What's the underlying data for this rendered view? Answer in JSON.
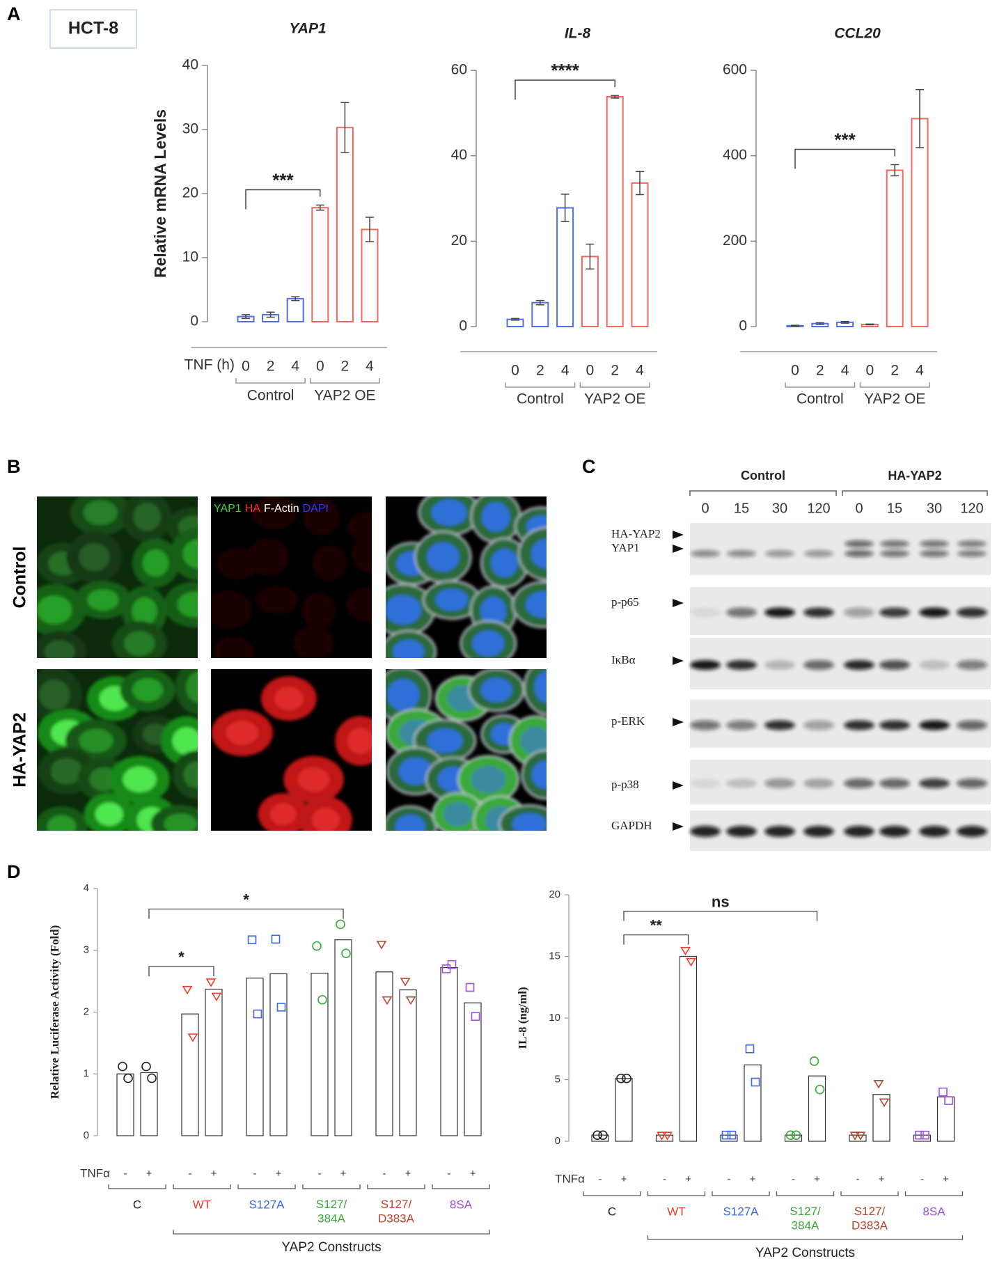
{
  "panel_labels": [
    "A",
    "B",
    "C",
    "D"
  ],
  "cell_line": "HCT-8",
  "chart_data": [
    {
      "type": "bar",
      "title": "YAP1",
      "y_label": "Relative mRNA Levels",
      "x_label": "TNF (h)",
      "categories": [
        "0",
        "2",
        "4",
        "0",
        "2",
        "4"
      ],
      "series": [
        {
          "name": "Control",
          "color": "#4f6fe8",
          "values": [
            0.8,
            1.1,
            3.6,
            null,
            null,
            null
          ],
          "errors": [
            0.3,
            0.4,
            0.3,
            null,
            null,
            null
          ]
        },
        {
          "name": "YAP2 OE",
          "color": "#f0685c",
          "values": [
            null,
            null,
            null,
            17.8,
            30.3,
            14.4
          ],
          "errors": [
            null,
            null,
            null,
            0.4,
            3.9,
            1.9
          ]
        }
      ],
      "ylim": [
        0,
        40
      ],
      "yticks": [
        0,
        10,
        20,
        30,
        40
      ],
      "annotations": [
        {
          "text": "***",
          "from": 0,
          "to": 3
        }
      ]
    },
    {
      "type": "bar",
      "title": "IL-8",
      "categories": [
        "0",
        "2",
        "4",
        "0",
        "2",
        "4"
      ],
      "series": [
        {
          "name": "Control",
          "color": "#4f6fe8",
          "values": [
            1.7,
            5.6,
            27.8,
            null,
            null,
            null
          ],
          "errors": [
            0.2,
            0.5,
            3.2,
            null,
            null,
            null
          ]
        },
        {
          "name": "YAP2 OE",
          "color": "#f0685c",
          "values": [
            null,
            null,
            null,
            16.4,
            53.8,
            33.6
          ],
          "errors": [
            null,
            null,
            null,
            2.9,
            0.3,
            2.7
          ]
        }
      ],
      "ylim": [
        0,
        60
      ],
      "yticks": [
        0,
        20,
        40,
        60
      ],
      "annotations": [
        {
          "text": "****",
          "from": 0,
          "to": 4
        }
      ]
    },
    {
      "type": "bar",
      "title": "CCL20",
      "categories": [
        "0",
        "2",
        "4",
        "0",
        "2",
        "4"
      ],
      "series": [
        {
          "name": "Control",
          "color": "#4f6fe8",
          "values": [
            2,
            7,
            10,
            null,
            null,
            null
          ],
          "errors": [
            1,
            2,
            2,
            null,
            null,
            null
          ]
        },
        {
          "name": "YAP2 OE",
          "color": "#f0685c",
          "values": [
            null,
            null,
            null,
            5,
            366,
            487
          ],
          "errors": [
            null,
            null,
            null,
            1,
            13,
            68
          ]
        }
      ],
      "ylim": [
        0,
        600
      ],
      "yticks": [
        0,
        200,
        400,
        600
      ],
      "annotations": [
        {
          "text": "***",
          "from": 0,
          "to": 4
        }
      ]
    },
    {
      "type": "bar_dots",
      "y_label": "Relative Luciferase Activity (Fold)",
      "x_label": "TNFα",
      "categories": [
        "-",
        "+"
      ],
      "series": [
        {
          "name": "C",
          "color": "#222222",
          "marker": "circle",
          "values": [
            1.0,
            1.02
          ],
          "points": [
            [
              1.12,
              0.93
            ],
            [
              1.12,
              0.93
            ]
          ]
        },
        {
          "name": "WT",
          "color": "#f03c2c",
          "marker": "triangle",
          "values": [
            1.97,
            2.37
          ],
          "points": [
            [
              2.37,
              1.6
            ],
            [
              2.49,
              2.26
            ]
          ]
        },
        {
          "name": "S127A",
          "color": "#3a66e8",
          "marker": "square",
          "values": [
            2.55,
            2.62
          ],
          "points": [
            [
              3.17,
              1.97
            ],
            [
              3.18,
              2.08
            ]
          ]
        },
        {
          "name": "S127/\n384A",
          "color": "#3aa838",
          "marker": "circle",
          "values": [
            2.63,
            3.17
          ],
          "points": [
            [
              3.07,
              2.2
            ],
            [
              3.42,
              2.95
            ]
          ]
        },
        {
          "name": "S127/\nD383A",
          "color": "#b8452a",
          "marker": "triangle",
          "values": [
            2.65,
            2.36
          ],
          "points": [
            [
              3.1,
              2.2
            ],
            [
              2.5,
              2.2
            ]
          ]
        },
        {
          "name": "8SA",
          "color": "#a050e0",
          "marker": "square",
          "values": [
            2.72,
            2.15
          ],
          "points": [
            [
              2.7,
              2.77
            ],
            [
              2.4,
              1.93
            ]
          ]
        }
      ],
      "ylim": [
        0,
        4
      ],
      "yticks": [
        0,
        1,
        2,
        3,
        4
      ],
      "annotations": [
        {
          "text": "*",
          "from": 1,
          "to": 3
        },
        {
          "text": "*",
          "from": 1,
          "to": 7
        }
      ],
      "span_label": {
        "text": "YAP2 Constructs",
        "from": 1,
        "to": 5
      }
    },
    {
      "type": "bar_dots",
      "y_label": "IL-8 (ng/ml)",
      "x_label": "TNFα",
      "categories": [
        "-",
        "+"
      ],
      "series": [
        {
          "name": "C",
          "color": "#222222",
          "marker": "circle",
          "values": [
            0.5,
            5.1
          ],
          "points": [
            [
              0.5,
              0.5
            ],
            [
              5.1,
              5.1
            ]
          ]
        },
        {
          "name": "WT",
          "color": "#f03c2c",
          "marker": "triangle",
          "values": [
            0.5,
            15.0
          ],
          "points": [
            [
              0.5,
              0.5
            ],
            [
              15.5,
              14.6
            ]
          ]
        },
        {
          "name": "S127A",
          "color": "#3a66e8",
          "marker": "square",
          "values": [
            0.5,
            6.2
          ],
          "points": [
            [
              0.5,
              0.5
            ],
            [
              7.5,
              4.8
            ]
          ]
        },
        {
          "name": "S127/\n384A",
          "color": "#3aa838",
          "marker": "circle",
          "values": [
            0.5,
            5.3
          ],
          "points": [
            [
              0.5,
              0.5
            ],
            [
              6.5,
              4.2
            ]
          ]
        },
        {
          "name": "S127/\nD383A",
          "color": "#b8452a",
          "marker": "triangle",
          "values": [
            0.5,
            3.8
          ],
          "points": [
            [
              0.5,
              0.5
            ],
            [
              4.7,
              3.2
            ]
          ]
        },
        {
          "name": "8SA",
          "color": "#a050e0",
          "marker": "square",
          "values": [
            0.5,
            3.6
          ],
          "points": [
            [
              0.5,
              0.5
            ],
            [
              4.0,
              3.3
            ]
          ]
        }
      ],
      "ylim": [
        0,
        20
      ],
      "yticks": [
        0,
        5,
        10,
        15,
        20
      ],
      "annotations": [
        {
          "text": "**",
          "from": 1,
          "to": 3
        },
        {
          "text": "ns",
          "from": 1,
          "to": 7
        }
      ],
      "span_label": {
        "text": "YAP2 Constructs",
        "from": 1,
        "to": 5
      }
    }
  ],
  "microscopy": {
    "rows": [
      "Control",
      "HA-YAP2"
    ],
    "stains": [
      {
        "text": "YAP1",
        "color": "#33dd33"
      },
      {
        "text": "HA",
        "color": "#ff2a2a"
      },
      {
        "text": "F-Actin",
        "color": "#ffffff"
      },
      {
        "text": "DAPI",
        "color": "#2a3cff"
      }
    ]
  },
  "western_blot": {
    "groups": [
      "Control",
      "HA-YAP2"
    ],
    "times": [
      "0",
      "15",
      "30",
      "120"
    ],
    "rows": [
      "HA-YAP2",
      "YAP1",
      "p-p65",
      "IκBα",
      "p-ERK",
      "p-p38",
      "GAPDH"
    ]
  }
}
